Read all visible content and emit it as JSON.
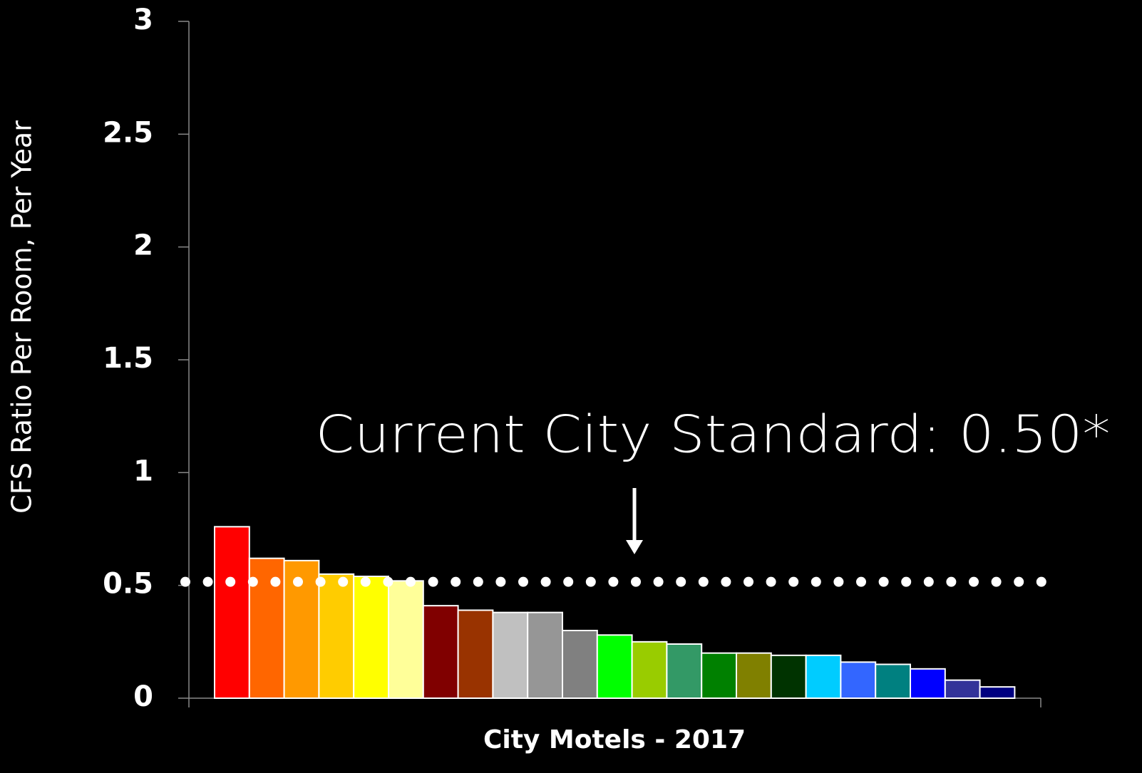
{
  "chart_data": {
    "type": "bar",
    "y_label": "CFS Ratio Per Room, Per Year",
    "x_label": "City Motels - 2017",
    "annotation": "Current City Standard: 0.50*",
    "reference_line": 0.5,
    "categories": [
      null,
      null,
      null,
      null,
      null,
      null,
      null,
      null,
      null,
      null,
      null,
      null,
      null,
      null,
      null,
      null,
      null,
      null,
      null,
      null,
      null,
      null,
      null
    ],
    "values": [
      0.76,
      0.62,
      0.61,
      0.55,
      0.54,
      0.52,
      0.41,
      0.39,
      0.38,
      0.38,
      0.3,
      0.28,
      0.25,
      0.24,
      0.2,
      0.2,
      0.19,
      0.19,
      0.16,
      0.15,
      0.13,
      0.08,
      0.05
    ],
    "colors": [
      "#ff0000",
      "#ff6600",
      "#ff9900",
      "#ffcc00",
      "#ffff00",
      "#ffff99",
      "#800000",
      "#993300",
      "#c0c0c0",
      "#969696",
      "#808080",
      "#00ff00",
      "#99cc00",
      "#339966",
      "#008000",
      "#808000",
      "#003300",
      "#00ccff",
      "#3366ff",
      "#008080",
      "#0000ff",
      "#333399",
      "#000080"
    ],
    "ylim": [
      0,
      3
    ],
    "yticks": [
      0,
      0.5,
      1,
      1.5,
      2,
      2.5,
      3
    ],
    "grid": false
  }
}
